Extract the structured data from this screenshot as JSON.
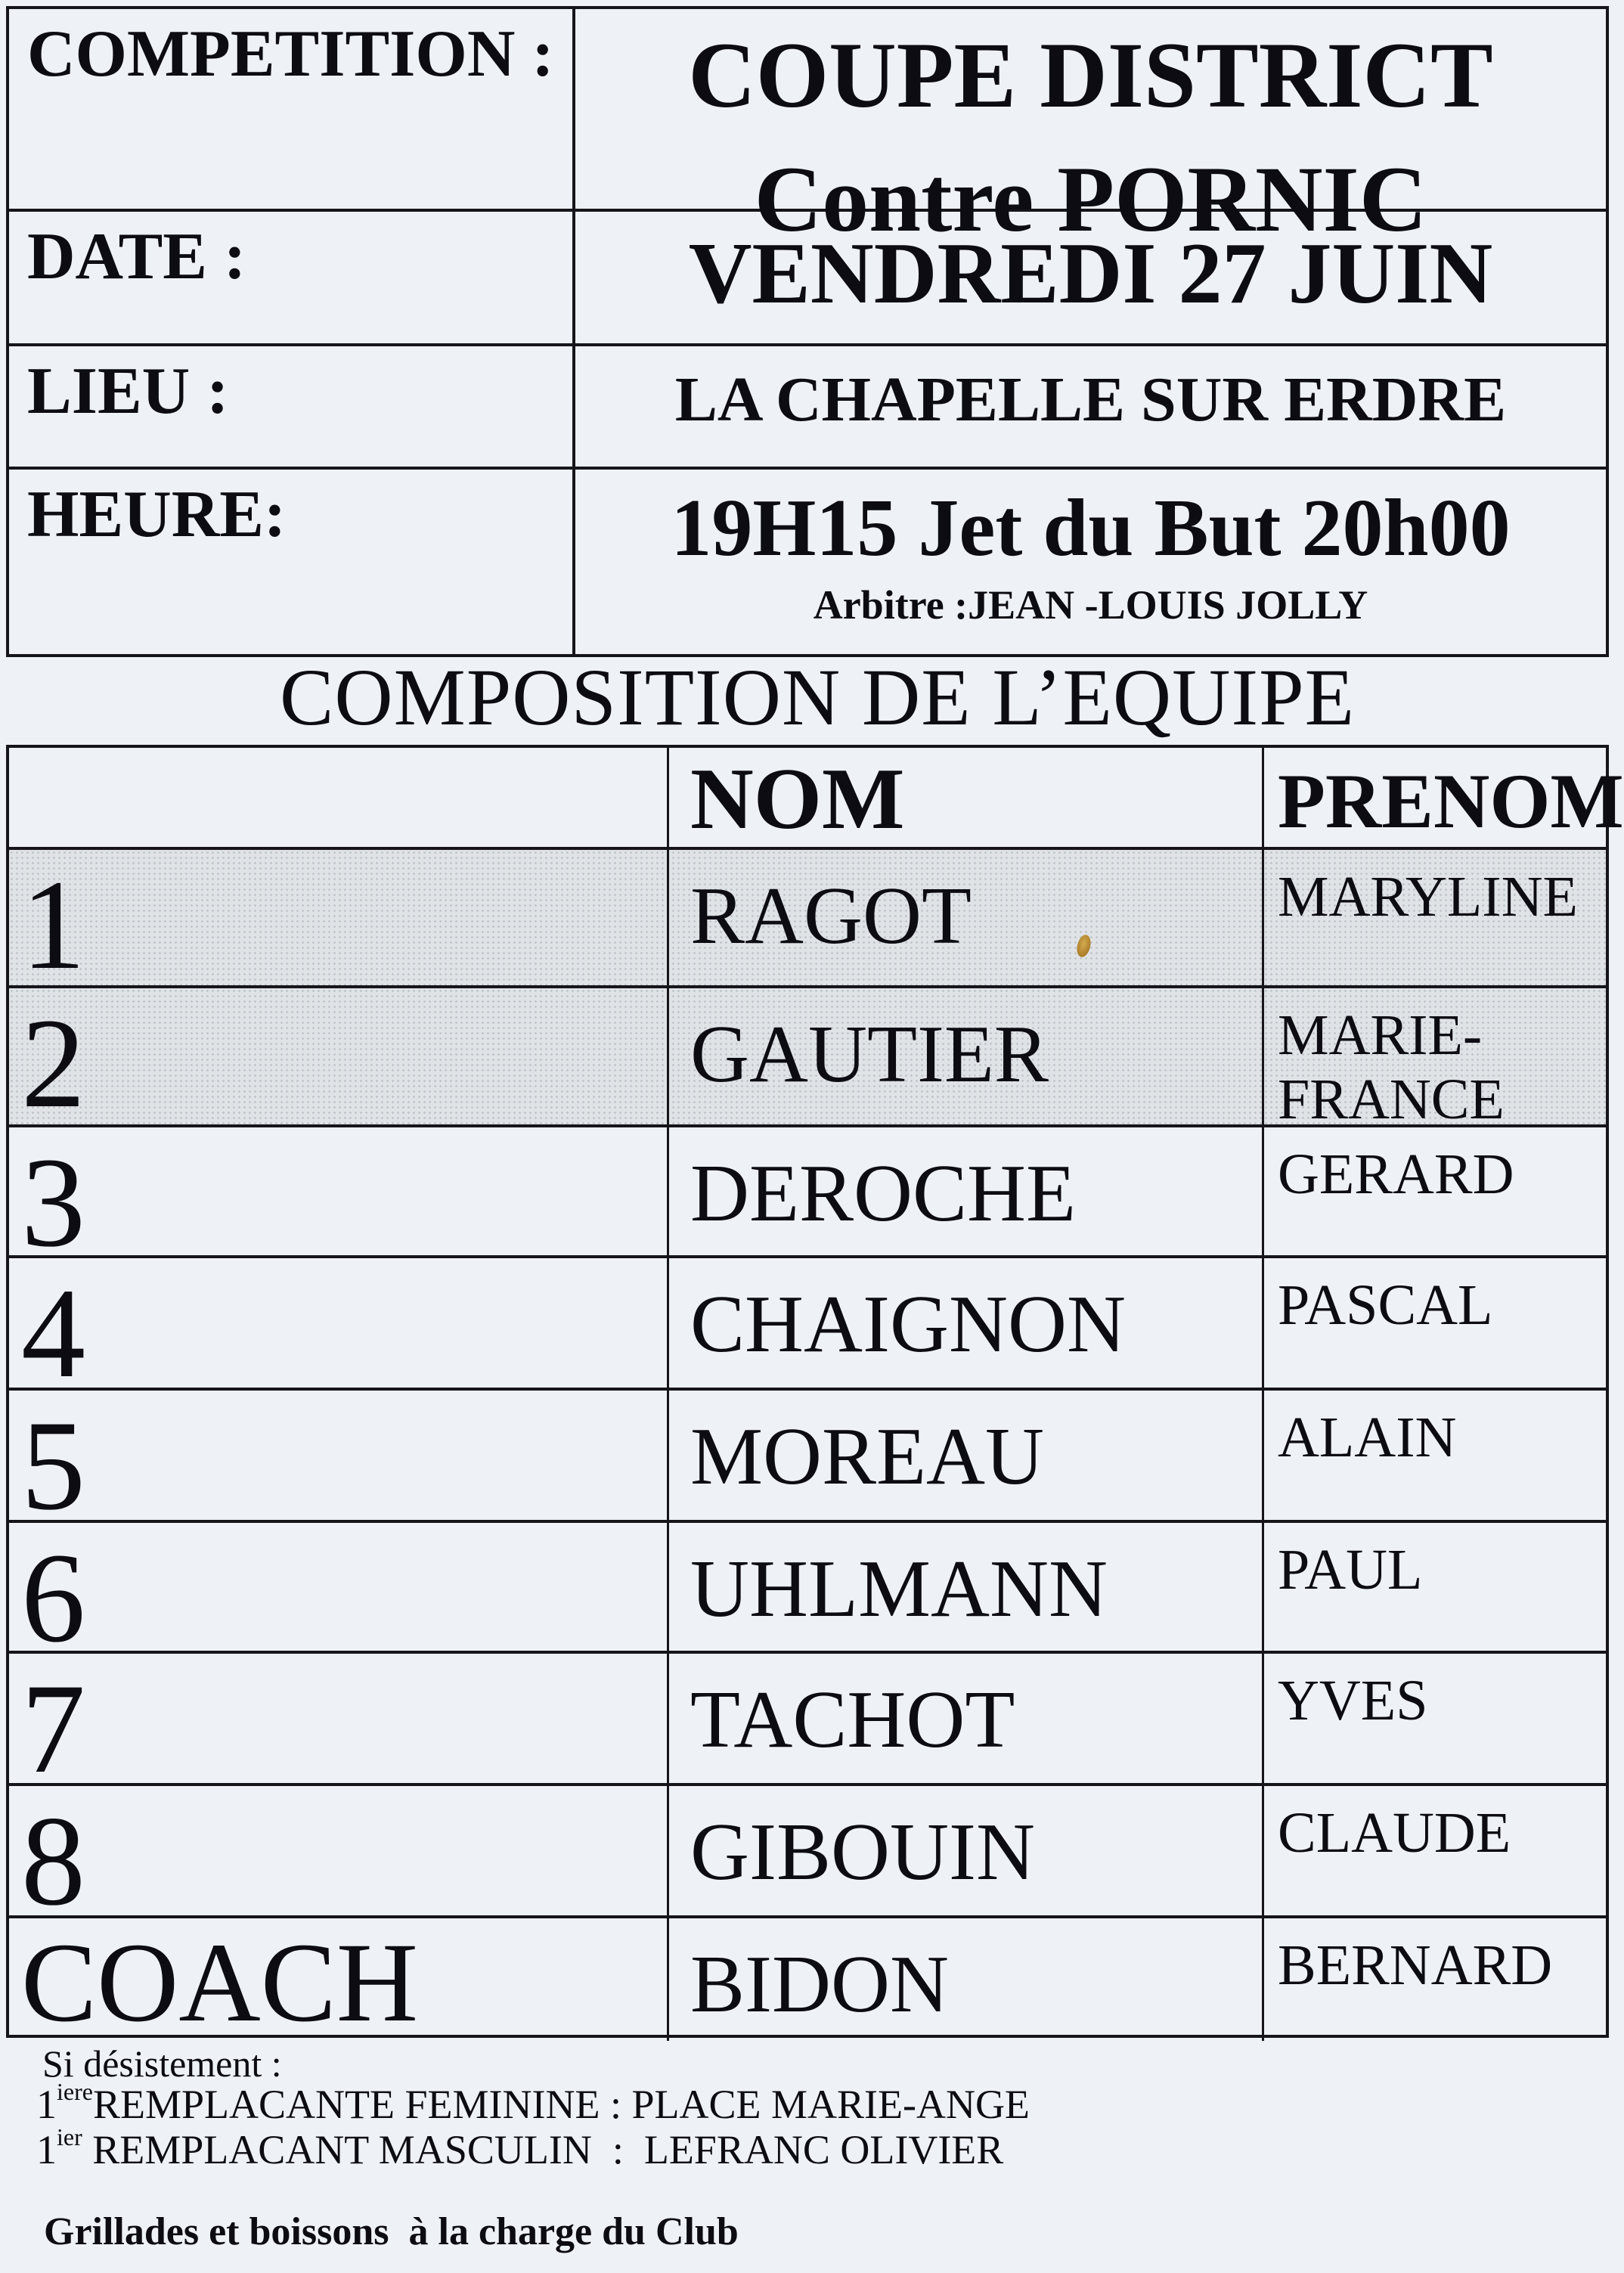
{
  "colors": {
    "paper": "#eef1f5",
    "ink": "#0c0c12",
    "line": "#15151a",
    "shaded_row": "#e0e3e6",
    "artifact_dot": "#a8761f"
  },
  "match_info": {
    "competition": {
      "label": "COMPETITION :",
      "line1": "COUPE DISTRICT",
      "line2": "Contre PORNIC"
    },
    "date": {
      "label": "DATE :",
      "value": "VENDREDI 27 JUIN"
    },
    "lieu": {
      "label": "LIEU :",
      "value": "LA CHAPELLE SUR ERDRE"
    },
    "heure": {
      "label": "HEURE:",
      "value": "19H15 Jet du But 20h00",
      "arbitre": "Arbitre :JEAN -LOUIS JOLLY"
    }
  },
  "section_title": "COMPOSITION DE L’EQUIPE",
  "roster": {
    "headers": {
      "nom": "NOM",
      "prenom": "PRENOM"
    },
    "rows": [
      {
        "num": "1",
        "nom": "RAGOT",
        "prenom_lines": [
          "MARYLINE"
        ],
        "shaded": true
      },
      {
        "num": "2",
        "nom": "GAUTIER",
        "prenom_lines": [
          "MARIE-",
          "FRANCE"
        ],
        "shaded": true
      },
      {
        "num": "3",
        "nom": "DEROCHE",
        "prenom_lines": [
          "GERARD"
        ],
        "shaded": false
      },
      {
        "num": "4",
        "nom": "CHAIGNON",
        "prenom_lines": [
          "PASCAL"
        ],
        "shaded": false
      },
      {
        "num": "5",
        "nom": "MOREAU",
        "prenom_lines": [
          "ALAIN"
        ],
        "shaded": false
      },
      {
        "num": "6",
        "nom": "UHLMANN",
        "prenom_lines": [
          "PAUL"
        ],
        "shaded": false
      },
      {
        "num": "7",
        "nom": "TACHOT",
        "prenom_lines": [
          "YVES"
        ],
        "shaded": false
      },
      {
        "num": "8",
        "nom": "GIBOUIN",
        "prenom_lines": [
          "CLAUDE"
        ],
        "shaded": false
      },
      {
        "num": "COACH",
        "nom": "BIDON",
        "prenom_lines": [
          "BERNARD"
        ],
        "shaded": false,
        "coach": true
      }
    ]
  },
  "footer": {
    "si_line": "Si désistement :",
    "fem_prefix": "1",
    "fem_sup": "iere",
    "fem_text": "REMPLACANTE FEMININE : PLACE MARIE-ANGE",
    "masc_prefix": "1",
    "masc_sup": "ier",
    "masc_text": " REMPLACANT MASCULIN  :  LEFRANC OLIVIER",
    "grillades": "Grillades et boissons  à la charge du Club"
  }
}
